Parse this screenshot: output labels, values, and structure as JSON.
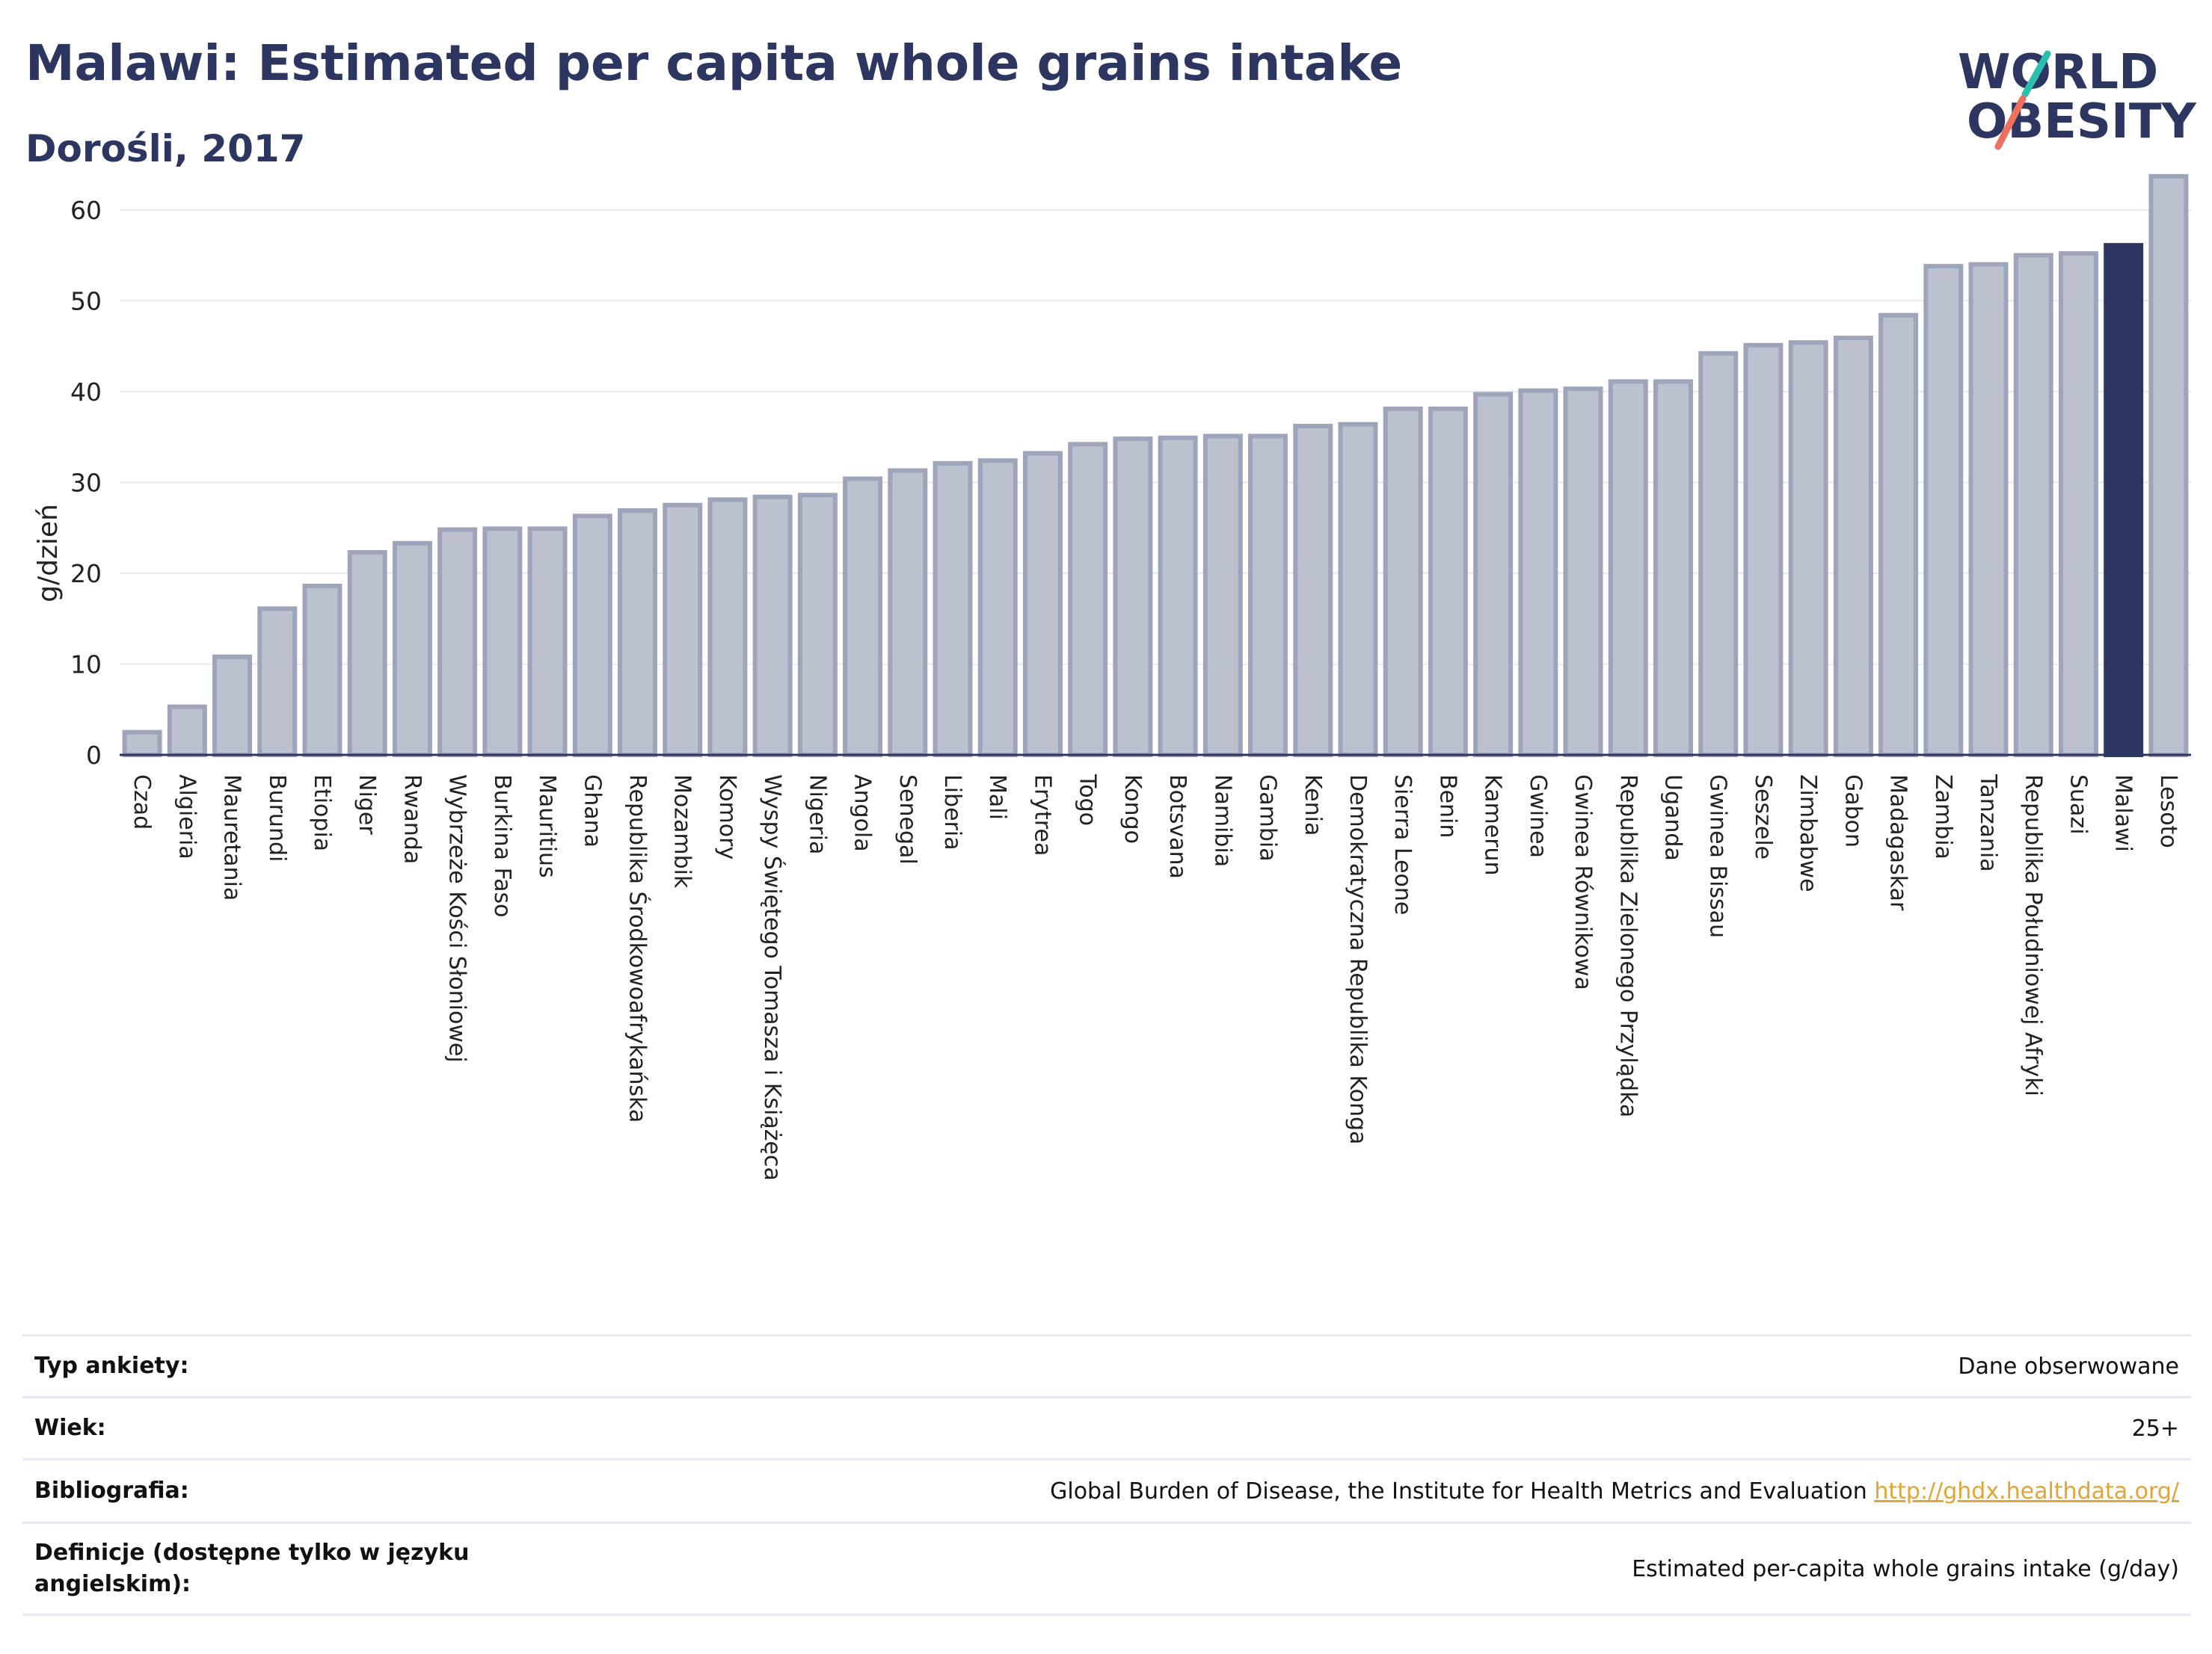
{
  "header": {
    "title": "Malawi: Estimated per capita whole grains intake",
    "subtitle": "Dorośli, 2017",
    "logo_line1": "WORLD",
    "logo_line2": "OBESITY"
  },
  "colors": {
    "bar": "#bcc1cf",
    "bar_border": "#9ea4ba",
    "highlight": "#2d3561",
    "title": "#2d3561",
    "link": "#e0a43a",
    "logo_teal": "#2bbfb0",
    "logo_coral": "#f07060"
  },
  "chart_data": {
    "type": "bar",
    "title": "Malawi: Estimated per capita whole grains intake",
    "subtitle": "Dorośli, 2017",
    "xlabel": "",
    "ylabel": "g/dzień",
    "ylim": [
      0,
      65
    ],
    "yticks": [
      0,
      10,
      20,
      30,
      40,
      50,
      60
    ],
    "grid": true,
    "highlight": "Malawi",
    "categories": [
      "Czad",
      "Algieria",
      "Mauretania",
      "Burundi",
      "Etiopia",
      "Niger",
      "Rwanda",
      "Wybrzeże Kości Słoniowej",
      "Burkina Faso",
      "Mauritius",
      "Ghana",
      "Republika Środkowoafrykańska",
      "Mozambik",
      "Komory",
      "Wyspy Świętego Tomasza i Książęca",
      "Nigeria",
      "Angola",
      "Senegal",
      "Liberia",
      "Mali",
      "Erytrea",
      "Togo",
      "Kongo",
      "Botsvana",
      "Namibia",
      "Gambia",
      "Kenia",
      "Demokratyczna Republika Konga",
      "Sierra Leone",
      "Benin",
      "Kamerun",
      "Gwinea",
      "Gwinea Równikowa",
      "Republika Zielonego Przylądka",
      "Uganda",
      "Gwinea Bissau",
      "Seszele",
      "Zimbabwe",
      "Gabon",
      "Madagaskar",
      "Zambia",
      "Tanzania",
      "Republika Południowej Afryki",
      "Suazi",
      "Malawi",
      "Lesoto"
    ],
    "values": [
      2.5,
      5.3,
      10.8,
      16.1,
      18.6,
      22.3,
      23.3,
      24.8,
      24.9,
      24.9,
      26.3,
      26.9,
      27.5,
      28.1,
      28.4,
      28.6,
      30.4,
      31.3,
      32.1,
      32.4,
      33.2,
      34.2,
      34.8,
      34.9,
      35.1,
      35.1,
      36.2,
      36.4,
      38.1,
      38.1,
      39.7,
      40.1,
      40.3,
      41.1,
      41.1,
      44.2,
      45.1,
      45.4,
      45.9,
      48.4,
      53.8,
      54.0,
      55.0,
      55.2,
      56.1,
      63.7
    ]
  },
  "info_table": [
    {
      "key": "Typ ankiety:",
      "value": "Dane obserwowane",
      "link": ""
    },
    {
      "key": "Wiek:",
      "value": "25+",
      "link": ""
    },
    {
      "key": "Bibliografia:",
      "value": "Global Burden of Disease, the Institute for Health Metrics and Evaluation",
      "link": "http://ghdx.healthdata.org/"
    },
    {
      "key": "Definicje (dostępne tylko w języku angielskim):",
      "value": "Estimated per-capita whole grains intake (g/day)",
      "link": ""
    }
  ]
}
